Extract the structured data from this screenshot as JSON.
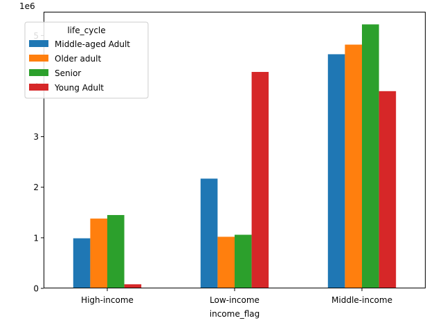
{
  "chart_data": {
    "type": "bar",
    "title": "",
    "xlabel": "income_flag",
    "ylabel": "",
    "y_offset_label": "1e6",
    "categories": [
      "High-income",
      "Low-income",
      "Middle-income"
    ],
    "yticks": [
      0,
      1,
      2,
      3,
      4,
      5
    ],
    "ylim": [
      0,
      5.47
    ],
    "grid": false,
    "legend": {
      "title": "life_cycle",
      "placement": "top-left"
    },
    "series": [
      {
        "name": "Middle-aged Adult",
        "color": "#1f77b4",
        "values": [
          0.99,
          2.17,
          4.63
        ]
      },
      {
        "name": "Older adult",
        "color": "#ff7f0e",
        "values": [
          1.38,
          1.02,
          4.82
        ]
      },
      {
        "name": "Senior",
        "color": "#2ca02c",
        "values": [
          1.45,
          1.06,
          5.22
        ]
      },
      {
        "name": "Young Adult",
        "color": "#d62728",
        "values": [
          0.08,
          4.28,
          3.9
        ]
      }
    ]
  }
}
